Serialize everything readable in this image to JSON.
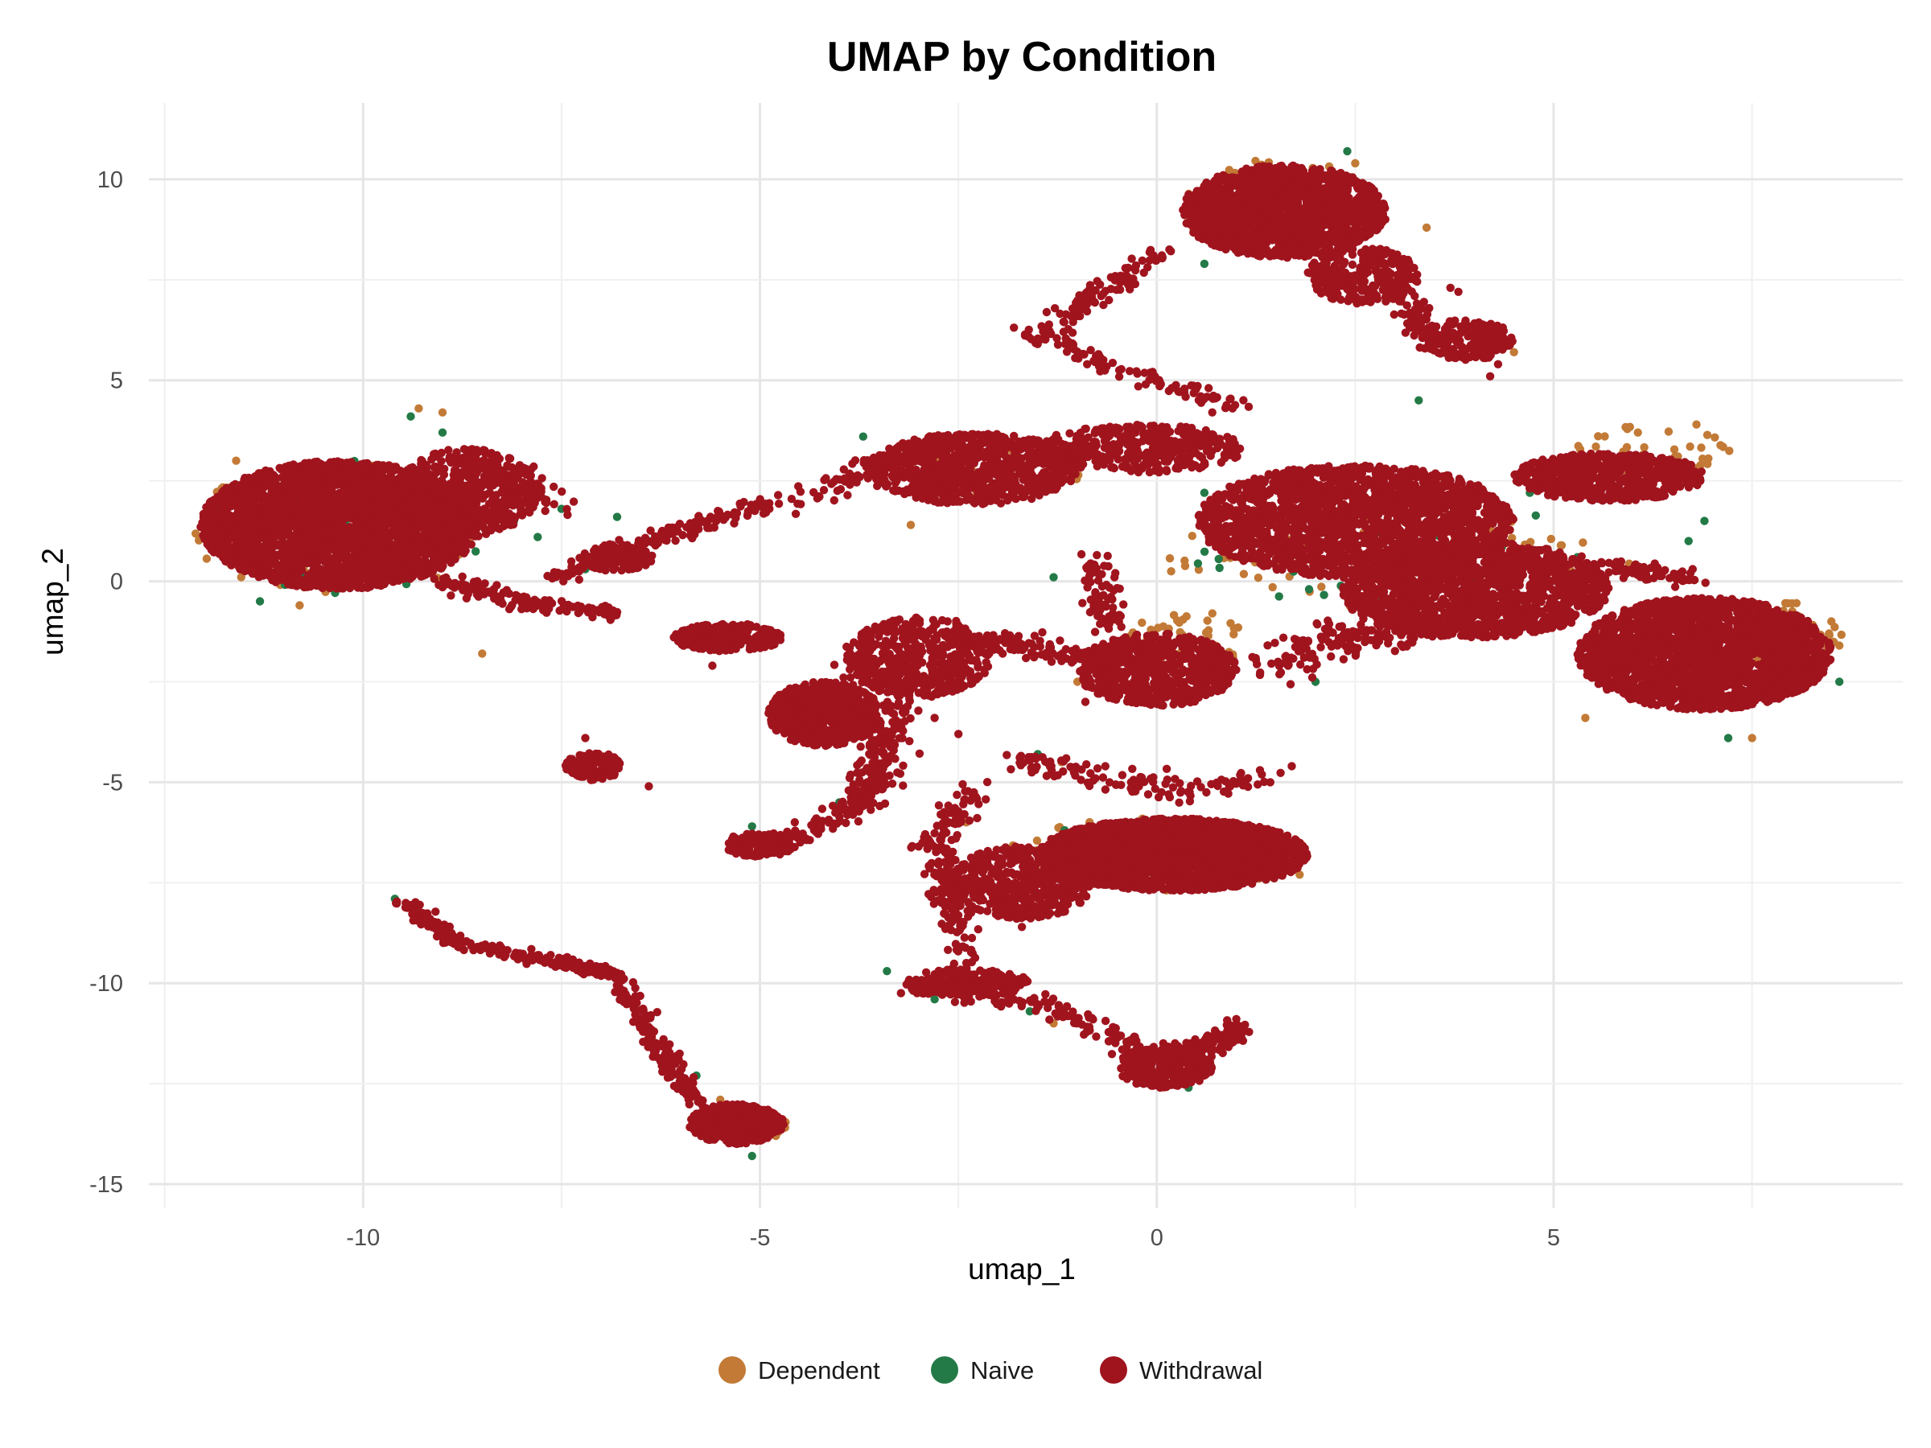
{
  "chart_data": {
    "type": "scatter",
    "title": "UMAP by Condition",
    "xlabel": "umap_1",
    "ylabel": "umap_2",
    "xlim": [
      -12.7,
      9.4
    ],
    "ylim": [
      -15.6,
      11.9
    ],
    "xticks": [
      -10,
      -5,
      0,
      5
    ],
    "yticks": [
      10,
      5,
      0,
      -5,
      -10,
      -15
    ],
    "grid": true,
    "legend_position": "bottom",
    "series": [
      {
        "name": "Dependent",
        "color": "#C27A36",
        "clusters": [
          {
            "cx": -10.3,
            "cy": 1.3,
            "rx": 1.9,
            "ry": 1.7,
            "n": 120
          },
          {
            "cx": 1.6,
            "cy": 9.3,
            "rx": 1.4,
            "ry": 1.2,
            "n": 60
          },
          {
            "cx": 8.0,
            "cy": -1.3,
            "rx": 0.7,
            "ry": 0.9,
            "n": 70
          },
          {
            "cx": 6.3,
            "cy": 3.3,
            "rx": 1.0,
            "ry": 0.6,
            "n": 40
          },
          {
            "cx": 0.4,
            "cy": -1.5,
            "rx": 0.8,
            "ry": 0.7,
            "n": 50
          },
          {
            "cx": 0.0,
            "cy": -6.8,
            "rx": 1.9,
            "ry": 0.9,
            "n": 80
          },
          {
            "cx": -2.2,
            "cy": 2.8,
            "rx": 1.3,
            "ry": 0.7,
            "n": 40
          },
          {
            "cx": -5.2,
            "cy": -13.5,
            "rx": 0.6,
            "ry": 0.4,
            "n": 25
          },
          {
            "cx": 3.0,
            "cy": 0.5,
            "rx": 3.0,
            "ry": 1.4,
            "n": 90
          }
        ],
        "points": [
          [
            -9.0,
            4.2
          ],
          [
            -9.3,
            4.3
          ],
          [
            2.5,
            10.4
          ],
          [
            3.4,
            8.8
          ],
          [
            4.5,
            5.7
          ],
          [
            8.5,
            -1.0
          ],
          [
            8.6,
            -1.6
          ],
          [
            6.8,
            3.9
          ],
          [
            4.2,
            1.3
          ],
          [
            -1.0,
            -2.5
          ],
          [
            0.7,
            -0.8
          ],
          [
            1.8,
            -7.3
          ],
          [
            -2.4,
            -6.0
          ],
          [
            -2.5,
            2.0
          ],
          [
            -3.1,
            1.4
          ],
          [
            0.2,
            -12.5
          ],
          [
            -1.3,
            -11.0
          ],
          [
            -4.8,
            -13.8
          ],
          [
            -5.5,
            -12.9
          ],
          [
            -8.5,
            -1.8
          ],
          [
            -10.8,
            -0.6
          ],
          [
            -11.6,
            3.0
          ],
          [
            7.5,
            -3.9
          ],
          [
            5.4,
            -3.4
          ],
          [
            -1.2,
            -4.5
          ]
        ]
      },
      {
        "name": "Naive",
        "color": "#237A47",
        "clusters": [
          {
            "cx": -10.3,
            "cy": 1.3,
            "rx": 1.9,
            "ry": 1.7,
            "n": 40
          },
          {
            "cx": 0.0,
            "cy": -6.8,
            "rx": 1.8,
            "ry": 0.9,
            "n": 20
          },
          {
            "cx": 3.0,
            "cy": 0.6,
            "rx": 3.0,
            "ry": 1.5,
            "n": 30
          }
        ],
        "points": [
          [
            -8.6,
            2.2
          ],
          [
            -8.4,
            2.5
          ],
          [
            -8.1,
            1.5
          ],
          [
            -7.8,
            1.1
          ],
          [
            -7.5,
            1.8
          ],
          [
            -7.2,
            0.3
          ],
          [
            -6.8,
            1.6
          ],
          [
            -6.4,
            1.0
          ],
          [
            -5.3,
            -1.5
          ],
          [
            -5.1,
            -6.1
          ],
          [
            -4.0,
            -5.5
          ],
          [
            -3.4,
            -9.7
          ],
          [
            -2.8,
            -10.4
          ],
          [
            -1.6,
            -10.7
          ],
          [
            -0.5,
            -11.3
          ],
          [
            0.4,
            -12.6
          ],
          [
            -1.5,
            -4.3
          ],
          [
            0.6,
            7.9
          ],
          [
            0.8,
            8.6
          ],
          [
            -1.4,
            6.1
          ],
          [
            2.4,
            10.7
          ],
          [
            3.3,
            4.5
          ],
          [
            4.7,
            2.2
          ],
          [
            5.3,
            0.6
          ],
          [
            6.7,
            1.0
          ],
          [
            6.9,
            1.5
          ],
          [
            -9.6,
            -7.9
          ],
          [
            -8.8,
            -9.0
          ],
          [
            -7.1,
            -4.4
          ],
          [
            -5.8,
            -12.3
          ],
          [
            -5.1,
            -14.3
          ],
          [
            8.6,
            -2.5
          ],
          [
            2.0,
            -2.5
          ],
          [
            0.6,
            2.2
          ],
          [
            -1.3,
            0.1
          ],
          [
            -9.0,
            3.7
          ],
          [
            -9.4,
            4.1
          ],
          [
            -3.7,
            3.6
          ],
          [
            -11.3,
            -0.5
          ],
          [
            7.2,
            -3.9
          ]
        ]
      },
      {
        "name": "Withdrawal",
        "color": "#A0141E",
        "clusters": [
          {
            "cx": -10.3,
            "cy": 1.4,
            "rx": 1.75,
            "ry": 1.6,
            "n": 3200
          },
          {
            "cx": -8.7,
            "cy": 2.2,
            "rx": 0.9,
            "ry": 1.1,
            "n": 500
          },
          {
            "cx": 1.6,
            "cy": 9.2,
            "rx": 1.3,
            "ry": 1.15,
            "n": 1500
          },
          {
            "cx": 2.6,
            "cy": 7.6,
            "rx": 0.7,
            "ry": 0.7,
            "n": 250
          },
          {
            "cx": 3.9,
            "cy": 6.0,
            "rx": 0.6,
            "ry": 0.5,
            "n": 200
          },
          {
            "cx": 2.5,
            "cy": 1.5,
            "rx": 2.0,
            "ry": 1.4,
            "n": 1800
          },
          {
            "cx": 4.0,
            "cy": -0.2,
            "rx": 1.7,
            "ry": 1.2,
            "n": 1500
          },
          {
            "cx": 6.9,
            "cy": -1.8,
            "rx": 1.6,
            "ry": 1.4,
            "n": 2200
          },
          {
            "cx": 5.7,
            "cy": 2.6,
            "rx": 1.2,
            "ry": 0.6,
            "n": 600
          },
          {
            "cx": -2.3,
            "cy": 2.8,
            "rx": 1.3,
            "ry": 0.9,
            "n": 800
          },
          {
            "cx": -0.2,
            "cy": 3.3,
            "rx": 1.3,
            "ry": 0.6,
            "n": 400
          },
          {
            "cx": 0.0,
            "cy": -2.2,
            "rx": 1.0,
            "ry": 0.9,
            "n": 700
          },
          {
            "cx": -4.2,
            "cy": -3.3,
            "rx": 0.7,
            "ry": 0.8,
            "n": 700
          },
          {
            "cx": -3.0,
            "cy": -1.9,
            "rx": 0.9,
            "ry": 1.0,
            "n": 500
          },
          {
            "cx": -5.4,
            "cy": -1.4,
            "rx": 0.7,
            "ry": 0.35,
            "n": 250
          },
          {
            "cx": 0.2,
            "cy": -6.8,
            "rx": 1.7,
            "ry": 0.9,
            "n": 2200
          },
          {
            "cx": -1.7,
            "cy": -7.5,
            "rx": 0.9,
            "ry": 0.9,
            "n": 500
          },
          {
            "cx": -5.0,
            "cy": -6.55,
            "rx": 0.45,
            "ry": 0.3,
            "n": 180
          },
          {
            "cx": -7.1,
            "cy": -4.6,
            "rx": 0.35,
            "ry": 0.35,
            "n": 120
          },
          {
            "cx": -5.3,
            "cy": -13.5,
            "rx": 0.6,
            "ry": 0.5,
            "n": 500
          },
          {
            "cx": 0.1,
            "cy": -12.1,
            "rx": 0.6,
            "ry": 0.5,
            "n": 300
          },
          {
            "cx": -2.4,
            "cy": -10.0,
            "rx": 0.8,
            "ry": 0.35,
            "n": 200
          },
          {
            "cx": -6.8,
            "cy": 0.6,
            "rx": 0.45,
            "ry": 0.35,
            "n": 120
          }
        ],
        "paths": [
          {
            "pts": [
              [
                -9.0,
                0.0
              ],
              [
                -8.0,
                -0.5
              ],
              [
                -6.8,
                -0.8
              ]
            ],
            "n": 140,
            "spread": 0.18
          },
          {
            "pts": [
              [
                -7.6,
                0.1
              ],
              [
                -6.6,
                0.8
              ],
              [
                -5.5,
                1.6
              ],
              [
                -4.1,
                2.3
              ],
              [
                -3.3,
                3.1
              ]
            ],
            "n": 220,
            "spread": 0.22
          },
          {
            "pts": [
              [
                -9.5,
                -8.0
              ],
              [
                -8.8,
                -9.0
              ],
              [
                -7.5,
                -9.5
              ],
              [
                -6.8,
                -9.8
              ],
              [
                -6.3,
                -11.5
              ],
              [
                -5.8,
                -13.0
              ]
            ],
            "n": 420,
            "spread": 0.15
          },
          {
            "pts": [
              [
                -1.6,
                6.0
              ],
              [
                -0.8,
                7.0
              ],
              [
                0.1,
                8.2
              ]
            ],
            "n": 110,
            "spread": 0.25
          },
          {
            "pts": [
              [
                -1.2,
                6.0
              ],
              [
                -0.6,
                5.3
              ],
              [
                0.3,
                4.8
              ],
              [
                1.0,
                4.3
              ]
            ],
            "n": 90,
            "spread": 0.18
          },
          {
            "pts": [
              [
                -3.0,
                -10.0
              ],
              [
                -2.0,
                -10.2
              ],
              [
                -1.0,
                -10.9
              ],
              [
                0.0,
                -11.8
              ],
              [
                0.8,
                -11.5
              ],
              [
                1.0,
                -11.0
              ]
            ],
            "n": 300,
            "spread": 0.25
          },
          {
            "pts": [
              [
                -2.4,
                -9.6
              ],
              [
                -2.6,
                -8.0
              ],
              [
                -2.8,
                -6.5
              ],
              [
                -2.3,
                -5.2
              ]
            ],
            "n": 180,
            "spread": 0.25
          },
          {
            "pts": [
              [
                -3.8,
                -1.8
              ],
              [
                -3.5,
                -3.5
              ],
              [
                -3.6,
                -5.0
              ],
              [
                -3.9,
                -5.8
              ]
            ],
            "n": 160,
            "spread": 0.35
          },
          {
            "pts": [
              [
                -4.6,
                -6.4
              ],
              [
                -4.2,
                -6.0
              ],
              [
                -3.7,
                -5.4
              ],
              [
                -3.4,
                -4.2
              ],
              [
                -3.2,
                -2.8
              ]
            ],
            "n": 140,
            "spread": 0.2
          },
          {
            "pts": [
              [
                -2.5,
                -1.4
              ],
              [
                -1.8,
                -1.6
              ],
              [
                -0.8,
                -1.9
              ]
            ],
            "n": 120,
            "spread": 0.3
          },
          {
            "pts": [
              [
                1.3,
                -2.2
              ],
              [
                2.2,
                -1.5
              ],
              [
                3.0,
                -1.2
              ],
              [
                4.0,
                -1.0
              ]
            ],
            "n": 200,
            "spread": 0.4
          },
          {
            "pts": [
              [
                -0.8,
                0.6
              ],
              [
                -0.7,
                -0.4
              ],
              [
                -0.6,
                -1.2
              ]
            ],
            "n": 80,
            "spread": 0.25
          },
          {
            "pts": [
              [
                -1.8,
                -4.4
              ],
              [
                -1.0,
                -4.8
              ],
              [
                0.2,
                -5.2
              ],
              [
                1.5,
                -4.8
              ]
            ],
            "n": 120,
            "spread": 0.3
          },
          {
            "pts": [
              [
                5.3,
                0.4
              ],
              [
                6.0,
                0.3
              ],
              [
                6.8,
                0.0
              ]
            ],
            "n": 80,
            "spread": 0.25
          },
          {
            "pts": [
              [
                -9.0,
                2.0
              ],
              [
                -8.4,
                2.5
              ],
              [
                -7.9,
                2.7
              ],
              [
                -7.5,
                1.8
              ]
            ],
            "n": 60,
            "spread": 0.25
          },
          {
            "pts": [
              [
                2.8,
                7.8
              ],
              [
                3.2,
                6.8
              ],
              [
                3.4,
                6.0
              ]
            ],
            "n": 90,
            "spread": 0.2
          }
        ],
        "points": [
          [
            4.2,
            5.1
          ],
          [
            4.3,
            5.4
          ],
          [
            3.7,
            7.3
          ],
          [
            3.8,
            7.2
          ],
          [
            -0.7,
            -7.3
          ],
          [
            -1.7,
            -8.6
          ],
          [
            -2.5,
            -3.8
          ],
          [
            -2.8,
            -3.4
          ],
          [
            -5.6,
            -2.1
          ],
          [
            -4.7,
            -3.2
          ],
          [
            -7.2,
            -3.9
          ],
          [
            -6.4,
            -5.1
          ],
          [
            1.3,
            -4.7
          ],
          [
            1.7,
            -4.6
          ],
          [
            -0.9,
            -3.0
          ]
        ]
      }
    ]
  }
}
